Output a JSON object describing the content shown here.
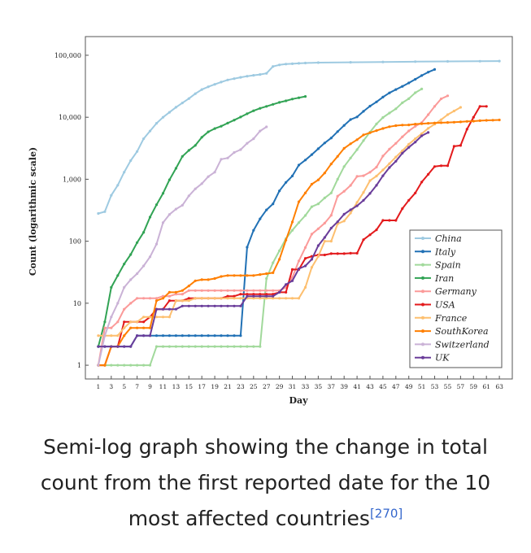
{
  "chart_data": {
    "type": "line",
    "xlabel": "Day",
    "ylabel": "Count (logarithmic scale)",
    "yscale": "log",
    "ylim": [
      0.6,
      200000
    ],
    "xlim": [
      -1,
      65
    ],
    "x_tick_labels": [
      "1",
      "3",
      "5",
      "7",
      "9",
      "11",
      "13",
      "15",
      "17",
      "19",
      "21",
      "23",
      "25",
      "27",
      "29",
      "31",
      "33",
      "35",
      "37",
      "39",
      "41",
      "43",
      "45",
      "47",
      "49",
      "51",
      "53",
      "55",
      "57",
      "59",
      "61",
      "63"
    ],
    "y_tick_labels": [
      {
        "value": 1,
        "label": "1"
      },
      {
        "value": 10,
        "label": "10"
      },
      {
        "value": 100,
        "label": "100"
      },
      {
        "value": 1000,
        "label": "1,000"
      },
      {
        "value": 10000,
        "label": "10,000"
      },
      {
        "value": 100000,
        "label": "100,000"
      }
    ],
    "legend_position": "lower-right",
    "grid": false,
    "series": [
      {
        "name": "China",
        "color": "#9ecae1",
        "x": [
          1,
          2,
          3,
          4,
          5,
          6,
          7,
          8,
          9,
          10,
          11,
          12,
          13,
          14,
          15,
          16,
          17,
          18,
          19,
          20,
          21,
          22,
          23,
          24,
          25,
          26,
          27,
          28,
          29,
          30,
          31,
          32,
          33,
          35,
          40,
          45,
          50,
          55,
          60,
          63
        ],
        "y": [
          280,
          300,
          550,
          800,
          1300,
          2000,
          2800,
          4500,
          6000,
          8000,
          10000,
          12000,
          14500,
          17000,
          20000,
          24000,
          28000,
          31000,
          34000,
          37000,
          40000,
          42000,
          44000,
          46000,
          47500,
          49000,
          51000,
          66000,
          70000,
          72000,
          73000,
          74000,
          75000,
          76000,
          77000,
          78000,
          79000,
          79500,
          80000,
          80500
        ]
      },
      {
        "name": "Italy",
        "color": "#2171b5",
        "x": [
          1,
          2,
          3,
          4,
          5,
          6,
          7,
          8,
          9,
          10,
          11,
          12,
          13,
          14,
          15,
          16,
          17,
          18,
          19,
          20,
          21,
          22,
          23,
          24,
          25,
          26,
          27,
          28,
          29,
          30,
          31,
          32,
          33,
          34,
          35,
          36,
          37,
          38,
          39,
          40,
          41,
          42,
          43,
          44,
          45,
          46,
          47,
          48,
          49,
          50,
          51,
          52,
          53
        ],
        "y": [
          2,
          2,
          2,
          2,
          2,
          2,
          3,
          3,
          3,
          3,
          3,
          3,
          3,
          3,
          3,
          3,
          3,
          3,
          3,
          3,
          3,
          3,
          3,
          80,
          150,
          230,
          320,
          400,
          650,
          890,
          1130,
          1690,
          2040,
          2500,
          3100,
          3850,
          4630,
          5880,
          7380,
          9170,
          10100,
          12460,
          15110,
          17660,
          21160,
          24750,
          27980,
          31500,
          35700,
          41000,
          47000,
          53500,
          59000
        ]
      },
      {
        "name": "Spain",
        "color": "#a1d99b",
        "x": [
          1,
          2,
          3,
          4,
          5,
          6,
          7,
          8,
          9,
          10,
          11,
          12,
          13,
          14,
          15,
          16,
          17,
          18,
          19,
          20,
          21,
          22,
          23,
          24,
          25,
          26,
          27,
          28,
          29,
          30,
          31,
          32,
          33,
          34,
          35,
          36,
          37,
          38,
          39,
          40,
          41,
          42,
          43,
          44,
          45,
          46,
          47,
          48,
          49,
          50,
          51
        ],
        "y": [
          1,
          1,
          1,
          1,
          1,
          1,
          1,
          1,
          1,
          2,
          2,
          2,
          2,
          2,
          2,
          2,
          2,
          2,
          2,
          2,
          2,
          2,
          2,
          2,
          2,
          2,
          25,
          45,
          70,
          110,
          150,
          200,
          260,
          360,
          400,
          500,
          600,
          1000,
          1600,
          2200,
          3000,
          4200,
          5750,
          7800,
          9900,
          11700,
          13700,
          17100,
          19900,
          24900,
          28600
        ]
      },
      {
        "name": "Iran",
        "color": "#31a354",
        "x": [
          1,
          2,
          3,
          4,
          5,
          6,
          7,
          8,
          9,
          10,
          11,
          12,
          13,
          14,
          15,
          16,
          17,
          18,
          19,
          20,
          21,
          22,
          23,
          24,
          25,
          26,
          27,
          28,
          29,
          30,
          31,
          32,
          33
        ],
        "y": [
          2,
          5,
          18,
          28,
          43,
          61,
          95,
          139,
          245,
          388,
          593,
          978,
          1501,
          2336,
          2922,
          3513,
          4747,
          5823,
          6566,
          7161,
          8042,
          9000,
          10075,
          11364,
          12729,
          13938,
          14991,
          16169,
          17361,
          18407,
          19644,
          20610,
          21638
        ]
      },
      {
        "name": "Germany",
        "color": "#fb9a99",
        "x": [
          1,
          2,
          3,
          4,
          5,
          6,
          7,
          8,
          9,
          10,
          11,
          12,
          13,
          14,
          15,
          16,
          17,
          18,
          19,
          20,
          21,
          22,
          23,
          24,
          25,
          26,
          27,
          28,
          29,
          30,
          31,
          32,
          33,
          34,
          35,
          36,
          37,
          38,
          39,
          40,
          41,
          42,
          43,
          44,
          45,
          46,
          47,
          48,
          49,
          50,
          51,
          52,
          53,
          54,
          55
        ],
        "y": [
          1,
          4,
          4,
          5,
          8,
          10,
          12,
          12,
          12,
          12,
          13,
          13,
          14,
          14,
          16,
          16,
          16,
          16,
          16,
          16,
          16,
          16,
          16,
          16,
          16,
          16,
          16,
          16,
          16,
          18,
          26,
          48,
          79,
          130,
          159,
          196,
          262,
          534,
          639,
          795,
          1112,
          1139,
          1296,
          1567,
          2369,
          3062,
          3795,
          4838,
          6012,
          7156,
          8198,
          10999,
          15000,
          19848,
          22213
        ]
      },
      {
        "name": "USA",
        "color": "#e31a1c",
        "x": [
          1,
          2,
          3,
          4,
          5,
          6,
          7,
          8,
          9,
          10,
          11,
          12,
          13,
          14,
          15,
          16,
          17,
          18,
          19,
          20,
          21,
          22,
          23,
          24,
          25,
          26,
          27,
          28,
          29,
          30,
          31,
          32,
          33,
          34,
          35,
          36,
          37,
          38,
          39,
          40,
          41,
          42,
          43,
          44,
          45,
          46,
          47,
          48,
          49,
          50,
          51,
          52,
          53,
          54,
          55,
          56,
          57,
          58,
          59,
          60,
          61
        ],
        "y": [
          1,
          1,
          2,
          2,
          5,
          5,
          5,
          5,
          6,
          8,
          8,
          11,
          11,
          11,
          12,
          12,
          12,
          12,
          12,
          12,
          13,
          13,
          14,
          14,
          14,
          14,
          14,
          14,
          15,
          15,
          35,
          35,
          53,
          57,
          60,
          60,
          63,
          63,
          63,
          64,
          64,
          106,
          127,
          153,
          217,
          217,
          217,
          336,
          458,
          600,
          900,
          1200,
          1600,
          1650,
          1650,
          3400,
          3500,
          6400,
          10000,
          15000,
          15000
        ]
      },
      {
        "name": "France",
        "color": "#fdbf6f",
        "x": [
          1,
          2,
          3,
          4,
          5,
          6,
          7,
          8,
          9,
          10,
          11,
          12,
          13,
          14,
          15,
          16,
          17,
          18,
          19,
          20,
          21,
          22,
          23,
          24,
          25,
          26,
          27,
          28,
          29,
          30,
          31,
          32,
          33,
          34,
          35,
          36,
          37,
          38,
          39,
          40,
          41,
          42,
          43,
          44,
          45,
          46,
          47,
          48,
          49,
          50,
          51,
          52,
          53,
          54,
          55,
          56,
          57
        ],
        "y": [
          3,
          3,
          3,
          3,
          4,
          5,
          5,
          6,
          6,
          6,
          6,
          6,
          11,
          11,
          11,
          12,
          12,
          12,
          12,
          12,
          12,
          12,
          12,
          12,
          12,
          12,
          12,
          12,
          12,
          12,
          12,
          12,
          18,
          38,
          57,
          100,
          100,
          191,
          212,
          285,
          423,
          613,
          949,
          1126,
          1412,
          1784,
          2281,
          2876,
          3661,
          4499,
          5423,
          6633,
          7730,
          9134,
          11000,
          12612,
          14459
        ]
      },
      {
        "name": "SouthKorea",
        "color": "#ff7f00",
        "x": [
          1,
          2,
          3,
          4,
          5,
          6,
          7,
          8,
          9,
          10,
          11,
          12,
          13,
          14,
          15,
          16,
          17,
          18,
          19,
          20,
          21,
          22,
          23,
          24,
          25,
          26,
          27,
          28,
          29,
          30,
          31,
          32,
          33,
          34,
          35,
          36,
          37,
          38,
          39,
          40,
          41,
          42,
          43,
          44,
          45,
          46,
          47,
          48,
          49,
          50,
          51,
          52,
          53,
          54,
          55,
          56,
          57,
          58,
          59,
          60,
          61,
          62,
          63
        ],
        "y": [
          1,
          1,
          2,
          2,
          3,
          4,
          4,
          4,
          4,
          11,
          12,
          15,
          15,
          16,
          19,
          23,
          24,
          24,
          25,
          27,
          28,
          28,
          28,
          28,
          28,
          29,
          30,
          31,
          51,
          104,
          204,
          433,
          602,
          833,
          977,
          1261,
          1766,
          2337,
          3150,
          3736,
          4335,
          5186,
          5621,
          6088,
          6593,
          7041,
          7314,
          7478,
          7513,
          7755,
          7869,
          7979,
          8086,
          8162,
          8236,
          8320,
          8413,
          8565,
          8652,
          8799,
          8897,
          8961,
          9037
        ]
      },
      {
        "name": "Switzerland",
        "color": "#cab2d6",
        "x": [
          1,
          2,
          3,
          4,
          5,
          6,
          7,
          8,
          9,
          10,
          11,
          12,
          13,
          14,
          15,
          16,
          17,
          18,
          19,
          20,
          21,
          22,
          23,
          24,
          25,
          26,
          27
        ],
        "y": [
          1,
          3,
          6,
          10,
          18,
          24,
          30,
          40,
          56,
          90,
          200,
          270,
          330,
          380,
          540,
          700,
          850,
          1100,
          1300,
          2100,
          2200,
          2700,
          3000,
          3800,
          4500,
          6000,
          7000
        ]
      },
      {
        "name": "UK",
        "color": "#6a3d9a",
        "x": [
          1,
          2,
          3,
          4,
          5,
          6,
          7,
          8,
          9,
          10,
          11,
          12,
          13,
          14,
          15,
          16,
          17,
          18,
          19,
          20,
          21,
          22,
          23,
          24,
          25,
          26,
          27,
          28,
          29,
          30,
          31,
          32,
          33,
          34,
          35,
          36,
          37,
          38,
          39,
          40,
          41,
          42,
          43,
          44,
          45,
          46,
          47,
          48,
          49,
          50,
          51,
          52
        ],
        "y": [
          2,
          2,
          2,
          2,
          2,
          2,
          3,
          3,
          3,
          8,
          8,
          8,
          8,
          9,
          9,
          9,
          9,
          9,
          9,
          9,
          9,
          9,
          9,
          13,
          13,
          13,
          13,
          13,
          15,
          20,
          23,
          36,
          40,
          51,
          85,
          115,
          163,
          206,
          273,
          321,
          373,
          456,
          590,
          798,
          1140,
          1543,
          1950,
          2626,
          3269,
          3983,
          5018,
          5683
        ]
      }
    ]
  },
  "caption": {
    "text": "Semi-log graph showing the change in total count from the first reported date for the 10 most affected countries",
    "ref": "[270]"
  }
}
